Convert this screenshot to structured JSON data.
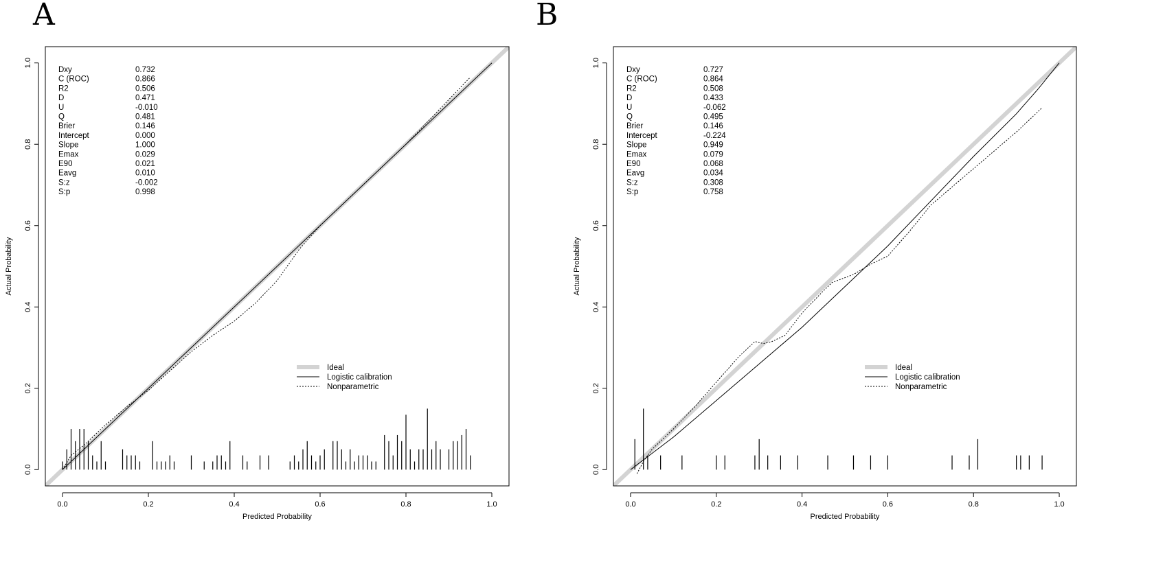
{
  "chart_data": [
    {
      "panel_label": "A",
      "type": "line",
      "xlabel": "Predicted Probability",
      "ylabel": "Actual Probability",
      "xlim": [
        -0.04,
        1.04
      ],
      "ylim": [
        -0.04,
        1.04
      ],
      "ticks": [
        "0.0",
        "0.2",
        "0.4",
        "0.6",
        "0.8",
        "1.0"
      ],
      "tick_values": [
        0,
        0.2,
        0.4,
        0.6,
        0.8,
        1.0
      ],
      "stats": [
        {
          "name": "Dxy",
          "value": "0.732"
        },
        {
          "name": "C (ROC)",
          "value": "0.866"
        },
        {
          "name": "R2",
          "value": "0.506"
        },
        {
          "name": "D",
          "value": "0.471"
        },
        {
          "name": "U",
          "value": "-0.010"
        },
        {
          "name": "Q",
          "value": "0.481"
        },
        {
          "name": "Brier",
          "value": "0.146"
        },
        {
          "name": "Intercept",
          "value": "0.000"
        },
        {
          "name": "Slope",
          "value": "1.000"
        },
        {
          "name": "Emax",
          "value": "0.029"
        },
        {
          "name": "E90",
          "value": "0.021"
        },
        {
          "name": "Eavg",
          "value": "0.010"
        },
        {
          "name": "S:z",
          "value": "-0.002"
        },
        {
          "name": "S:p",
          "value": "0.998"
        }
      ],
      "legend": [
        "Ideal",
        "Logistic calibration",
        "Nonparametric"
      ],
      "series": [
        {
          "name": "Ideal",
          "style": "ideal",
          "x": [
            -0.04,
            1.04
          ],
          "y": [
            -0.04,
            1.04
          ]
        },
        {
          "name": "Logistic calibration",
          "style": "solid",
          "x": [
            0.0,
            0.05,
            0.1,
            0.2,
            0.3,
            0.4,
            0.5,
            0.6,
            0.7,
            0.8,
            0.9,
            1.0
          ],
          "y": [
            0.0,
            0.05,
            0.1,
            0.2,
            0.3,
            0.4,
            0.5,
            0.6,
            0.7,
            0.8,
            0.9,
            1.0
          ]
        },
        {
          "name": "Nonparametric",
          "style": "dotted",
          "x": [
            0.0,
            0.02,
            0.05,
            0.08,
            0.1,
            0.15,
            0.2,
            0.3,
            0.35,
            0.4,
            0.45,
            0.5,
            0.55,
            0.6,
            0.65,
            0.7,
            0.8,
            0.85,
            0.9,
            0.95
          ],
          "y": [
            0.0,
            0.035,
            0.06,
            0.09,
            0.11,
            0.155,
            0.195,
            0.29,
            0.33,
            0.365,
            0.41,
            0.465,
            0.54,
            0.6,
            0.65,
            0.7,
            0.8,
            0.855,
            0.91,
            0.965
          ]
        }
      ],
      "rug": [
        {
          "x": 0.0,
          "h": 0.02
        },
        {
          "x": 0.01,
          "h": 0.05
        },
        {
          "x": 0.02,
          "h": 0.1
        },
        {
          "x": 0.03,
          "h": 0.07
        },
        {
          "x": 0.04,
          "h": 0.1
        },
        {
          "x": 0.05,
          "h": 0.1
        },
        {
          "x": 0.06,
          "h": 0.07
        },
        {
          "x": 0.07,
          "h": 0.035
        },
        {
          "x": 0.08,
          "h": 0.02
        },
        {
          "x": 0.09,
          "h": 0.07
        },
        {
          "x": 0.1,
          "h": 0.02
        },
        {
          "x": 0.14,
          "h": 0.05
        },
        {
          "x": 0.15,
          "h": 0.035
        },
        {
          "x": 0.16,
          "h": 0.035
        },
        {
          "x": 0.17,
          "h": 0.035
        },
        {
          "x": 0.18,
          "h": 0.02
        },
        {
          "x": 0.21,
          "h": 0.07
        },
        {
          "x": 0.22,
          "h": 0.02
        },
        {
          "x": 0.23,
          "h": 0.02
        },
        {
          "x": 0.24,
          "h": 0.02
        },
        {
          "x": 0.25,
          "h": 0.035
        },
        {
          "x": 0.26,
          "h": 0.02
        },
        {
          "x": 0.3,
          "h": 0.035
        },
        {
          "x": 0.33,
          "h": 0.02
        },
        {
          "x": 0.35,
          "h": 0.02
        },
        {
          "x": 0.36,
          "h": 0.035
        },
        {
          "x": 0.37,
          "h": 0.035
        },
        {
          "x": 0.38,
          "h": 0.02
        },
        {
          "x": 0.39,
          "h": 0.07
        },
        {
          "x": 0.42,
          "h": 0.035
        },
        {
          "x": 0.43,
          "h": 0.02
        },
        {
          "x": 0.46,
          "h": 0.035
        },
        {
          "x": 0.48,
          "h": 0.035
        },
        {
          "x": 0.53,
          "h": 0.02
        },
        {
          "x": 0.54,
          "h": 0.035
        },
        {
          "x": 0.55,
          "h": 0.02
        },
        {
          "x": 0.56,
          "h": 0.05
        },
        {
          "x": 0.57,
          "h": 0.07
        },
        {
          "x": 0.58,
          "h": 0.035
        },
        {
          "x": 0.59,
          "h": 0.02
        },
        {
          "x": 0.6,
          "h": 0.035
        },
        {
          "x": 0.61,
          "h": 0.05
        },
        {
          "x": 0.63,
          "h": 0.07
        },
        {
          "x": 0.64,
          "h": 0.07
        },
        {
          "x": 0.65,
          "h": 0.05
        },
        {
          "x": 0.66,
          "h": 0.02
        },
        {
          "x": 0.67,
          "h": 0.05
        },
        {
          "x": 0.68,
          "h": 0.02
        },
        {
          "x": 0.69,
          "h": 0.035
        },
        {
          "x": 0.7,
          "h": 0.035
        },
        {
          "x": 0.71,
          "h": 0.035
        },
        {
          "x": 0.72,
          "h": 0.02
        },
        {
          "x": 0.73,
          "h": 0.02
        },
        {
          "x": 0.75,
          "h": 0.085
        },
        {
          "x": 0.76,
          "h": 0.07
        },
        {
          "x": 0.77,
          "h": 0.035
        },
        {
          "x": 0.78,
          "h": 0.085
        },
        {
          "x": 0.79,
          "h": 0.07
        },
        {
          "x": 0.8,
          "h": 0.135
        },
        {
          "x": 0.81,
          "h": 0.05
        },
        {
          "x": 0.82,
          "h": 0.02
        },
        {
          "x": 0.83,
          "h": 0.05
        },
        {
          "x": 0.84,
          "h": 0.05
        },
        {
          "x": 0.85,
          "h": 0.15
        },
        {
          "x": 0.86,
          "h": 0.05
        },
        {
          "x": 0.87,
          "h": 0.07
        },
        {
          "x": 0.88,
          "h": 0.05
        },
        {
          "x": 0.9,
          "h": 0.05
        },
        {
          "x": 0.91,
          "h": 0.07
        },
        {
          "x": 0.92,
          "h": 0.07
        },
        {
          "x": 0.93,
          "h": 0.085
        },
        {
          "x": 0.94,
          "h": 0.1
        },
        {
          "x": 0.95,
          "h": 0.035
        }
      ]
    },
    {
      "panel_label": "B",
      "type": "line",
      "xlabel": "Predicted Probability",
      "ylabel": "Actual Probability",
      "xlim": [
        -0.04,
        1.04
      ],
      "ylim": [
        -0.04,
        1.04
      ],
      "ticks": [
        "0.0",
        "0.2",
        "0.4",
        "0.6",
        "0.8",
        "1.0"
      ],
      "tick_values": [
        0,
        0.2,
        0.4,
        0.6,
        0.8,
        1.0
      ],
      "stats": [
        {
          "name": "Dxy",
          "value": "0.727"
        },
        {
          "name": "C (ROC)",
          "value": "0.864"
        },
        {
          "name": "R2",
          "value": "0.508"
        },
        {
          "name": "D",
          "value": "0.433"
        },
        {
          "name": "U",
          "value": "-0.062"
        },
        {
          "name": "Q",
          "value": "0.495"
        },
        {
          "name": "Brier",
          "value": "0.146"
        },
        {
          "name": "Intercept",
          "value": "-0.224"
        },
        {
          "name": "Slope",
          "value": "0.949"
        },
        {
          "name": "Emax",
          "value": "0.079"
        },
        {
          "name": "E90",
          "value": "0.068"
        },
        {
          "name": "Eavg",
          "value": "0.034"
        },
        {
          "name": "S:z",
          "value": "0.308"
        },
        {
          "name": "S:p",
          "value": "0.758"
        }
      ],
      "legend": [
        "Ideal",
        "Logistic calibration",
        "Nonparametric"
      ],
      "series": [
        {
          "name": "Ideal",
          "style": "ideal",
          "x": [
            -0.04,
            1.04
          ],
          "y": [
            -0.04,
            1.04
          ]
        },
        {
          "name": "Logistic calibration",
          "style": "solid",
          "x": [
            0.0,
            0.05,
            0.1,
            0.2,
            0.3,
            0.4,
            0.5,
            0.6,
            0.7,
            0.8,
            0.9,
            0.95,
            1.0
          ],
          "y": [
            0.0,
            0.04,
            0.08,
            0.17,
            0.26,
            0.35,
            0.45,
            0.55,
            0.66,
            0.77,
            0.875,
            0.935,
            1.0
          ]
        },
        {
          "name": "Nonparametric",
          "style": "dotted",
          "x": [
            0.015,
            0.03,
            0.05,
            0.1,
            0.15,
            0.2,
            0.25,
            0.29,
            0.31,
            0.33,
            0.36,
            0.4,
            0.45,
            0.47,
            0.52,
            0.56,
            0.6,
            0.65,
            0.7,
            0.8,
            0.9,
            0.96
          ],
          "y": [
            -0.01,
            0.02,
            0.05,
            0.1,
            0.155,
            0.215,
            0.275,
            0.315,
            0.31,
            0.315,
            0.33,
            0.385,
            0.44,
            0.46,
            0.48,
            0.505,
            0.525,
            0.585,
            0.65,
            0.74,
            0.83,
            0.89
          ]
        }
      ],
      "rug": [
        {
          "x": 0.01,
          "h": 0.075
        },
        {
          "x": 0.03,
          "h": 0.15
        },
        {
          "x": 0.04,
          "h": 0.035
        },
        {
          "x": 0.07,
          "h": 0.035
        },
        {
          "x": 0.12,
          "h": 0.035
        },
        {
          "x": 0.2,
          "h": 0.035
        },
        {
          "x": 0.22,
          "h": 0.035
        },
        {
          "x": 0.29,
          "h": 0.035
        },
        {
          "x": 0.3,
          "h": 0.075
        },
        {
          "x": 0.32,
          "h": 0.035
        },
        {
          "x": 0.35,
          "h": 0.035
        },
        {
          "x": 0.39,
          "h": 0.035
        },
        {
          "x": 0.46,
          "h": 0.035
        },
        {
          "x": 0.52,
          "h": 0.035
        },
        {
          "x": 0.56,
          "h": 0.035
        },
        {
          "x": 0.6,
          "h": 0.035
        },
        {
          "x": 0.75,
          "h": 0.035
        },
        {
          "x": 0.79,
          "h": 0.035
        },
        {
          "x": 0.81,
          "h": 0.075
        },
        {
          "x": 0.9,
          "h": 0.035
        },
        {
          "x": 0.91,
          "h": 0.035
        },
        {
          "x": 0.93,
          "h": 0.035
        },
        {
          "x": 0.96,
          "h": 0.035
        }
      ]
    }
  ]
}
